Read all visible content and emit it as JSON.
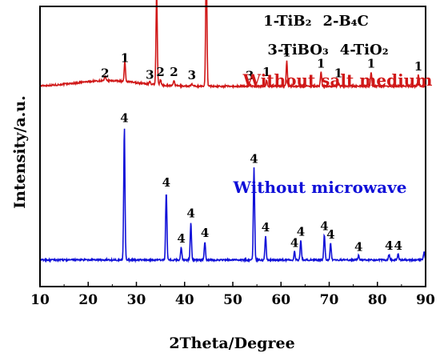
{
  "chart_data": {
    "type": "line",
    "xlabel": "2Theta/Degree",
    "ylabel": "Intensity/a.u.",
    "xlim": [
      10,
      90
    ],
    "xticks": [
      10,
      20,
      30,
      40,
      50,
      60,
      70,
      80,
      90
    ],
    "grid": false,
    "legend": {
      "placement": "top-right",
      "row1": [
        "1-TiB₂",
        "2-B₄C"
      ],
      "row2": [
        "3-TiBO₃",
        "4-TiO₂"
      ]
    },
    "series": [
      {
        "name": "Without salt medium",
        "color": "#d01818",
        "baseline": 0.715,
        "hump": {
          "center": 24,
          "height": 0.02,
          "width": 9
        },
        "peaks": [
          {
            "x": 23.5,
            "h": 0.015,
            "label": "2"
          },
          {
            "x": 27.6,
            "h": 0.07,
            "label": "1"
          },
          {
            "x": 32.8,
            "h": 0.01,
            "label": "3"
          },
          {
            "x": 34.2,
            "h": 0.34,
            "label": "1"
          },
          {
            "x": 35.0,
            "h": 0.02,
            "label": "2"
          },
          {
            "x": 37.8,
            "h": 0.02,
            "label": "2"
          },
          {
            "x": 41.5,
            "h": 0.008,
            "label": "3"
          },
          {
            "x": 44.5,
            "h": 0.465,
            "label": "1"
          },
          {
            "x": 53.5,
            "h": 0.006,
            "label": "3"
          },
          {
            "x": 57.0,
            "h": 0.02,
            "label": "1"
          },
          {
            "x": 61.2,
            "h": 0.09,
            "label": "1"
          },
          {
            "x": 68.3,
            "h": 0.05,
            "label": "1"
          },
          {
            "x": 71.9,
            "h": 0.015,
            "label": "1"
          },
          {
            "x": 78.7,
            "h": 0.05,
            "label": "1"
          },
          {
            "x": 88.5,
            "h": 0.04,
            "label": "1"
          }
        ]
      },
      {
        "name": "Without microwave",
        "color": "#1010d8",
        "baseline": 0.095,
        "peaks": [
          {
            "x": 27.5,
            "h": 0.475,
            "label": "4"
          },
          {
            "x": 36.2,
            "h": 0.245,
            "label": "4"
          },
          {
            "x": 39.3,
            "h": 0.045,
            "label": "4"
          },
          {
            "x": 41.3,
            "h": 0.135,
            "label": "4"
          },
          {
            "x": 44.2,
            "h": 0.065,
            "label": "4"
          },
          {
            "x": 54.4,
            "h": 0.33,
            "label": "4"
          },
          {
            "x": 56.8,
            "h": 0.085,
            "label": "4"
          },
          {
            "x": 62.8,
            "h": 0.03,
            "label": "4"
          },
          {
            "x": 64.1,
            "h": 0.07,
            "label": "4"
          },
          {
            "x": 69.0,
            "h": 0.09,
            "label": "4"
          },
          {
            "x": 70.3,
            "h": 0.06,
            "label": "4"
          },
          {
            "x": 76.1,
            "h": 0.015,
            "label": "4"
          },
          {
            "x": 82.4,
            "h": 0.02,
            "label": "4"
          },
          {
            "x": 84.3,
            "h": 0.02,
            "label": "4"
          },
          {
            "x": 89.7,
            "h": 0.03,
            "label": ""
          }
        ]
      }
    ]
  }
}
